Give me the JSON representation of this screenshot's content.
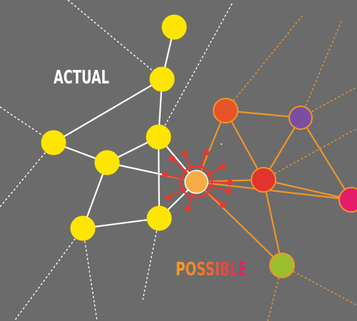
{
  "labels": {
    "actual": "ACTUAL",
    "possible_letters": [
      "P",
      "O",
      "S",
      "S",
      "I",
      "B",
      "L",
      "E"
    ]
  },
  "colors": {
    "background": "#6b6b6b",
    "actual_nodes": "#ffe600",
    "actual_edges": "#ffffff",
    "possible_edges": "#f0952a",
    "center_node": "#f7ad45",
    "center_ring": "#e8392e",
    "possible_letters": [
      "#f39a2a",
      "#f28a2c",
      "#f0782e",
      "#ee6a33",
      "#e95a3a",
      "#e24a44",
      "#de3a52",
      "#d92a5e"
    ],
    "possible_nodes": {
      "orange": "#e8542a",
      "purple": "#7b4fa0",
      "red": "#e2332c",
      "pink": "#e31c6b",
      "green": "#9bbf2c"
    }
  }
}
